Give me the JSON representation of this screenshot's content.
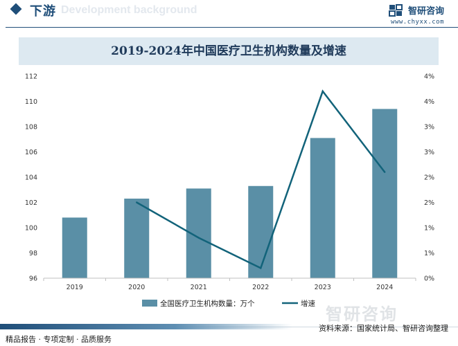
{
  "header": {
    "section_title": "下游",
    "watermark": "Development background",
    "brand_name": "智研咨询",
    "brand_url": "www.chyxx.com"
  },
  "watermark_big": "智研咨询",
  "footer": {
    "source": "资料来源：国家统计局、智研咨询整理",
    "tagline": "精品报告 · 专项定制 · 品质服务"
  },
  "colors": {
    "bar": "#5a8fa6",
    "line": "#12637a",
    "brand": "#1f4e79",
    "title_bg": "#dde9f1"
  },
  "chart_data": {
    "type": "bar",
    "title": "2019-2024年中国医疗卫生机构数量及增速",
    "categories": [
      "2019",
      "2020",
      "2021",
      "2022",
      "2023",
      "2024"
    ],
    "series": [
      {
        "name": "全国医疗卫生机构数量：万个",
        "type": "bar",
        "axis": "left",
        "values": [
          100.8,
          102.3,
          103.1,
          103.3,
          107.1,
          109.4
        ]
      },
      {
        "name": "增速",
        "type": "line",
        "axis": "right",
        "values": [
          null,
          1.5,
          0.8,
          0.2,
          3.7,
          2.1
        ]
      }
    ],
    "left_axis": {
      "min": 96,
      "max": 112,
      "ticks": [
        "96",
        "98",
        "100",
        "102",
        "104",
        "106",
        "108",
        "110",
        "112"
      ]
    },
    "right_axis": {
      "min": 0,
      "max": 4,
      "ticks": [
        "0%",
        "1%",
        "1%",
        "2%",
        "2%",
        "3%",
        "3%",
        "4%",
        "4%"
      ]
    },
    "legend_position": "bottom"
  }
}
